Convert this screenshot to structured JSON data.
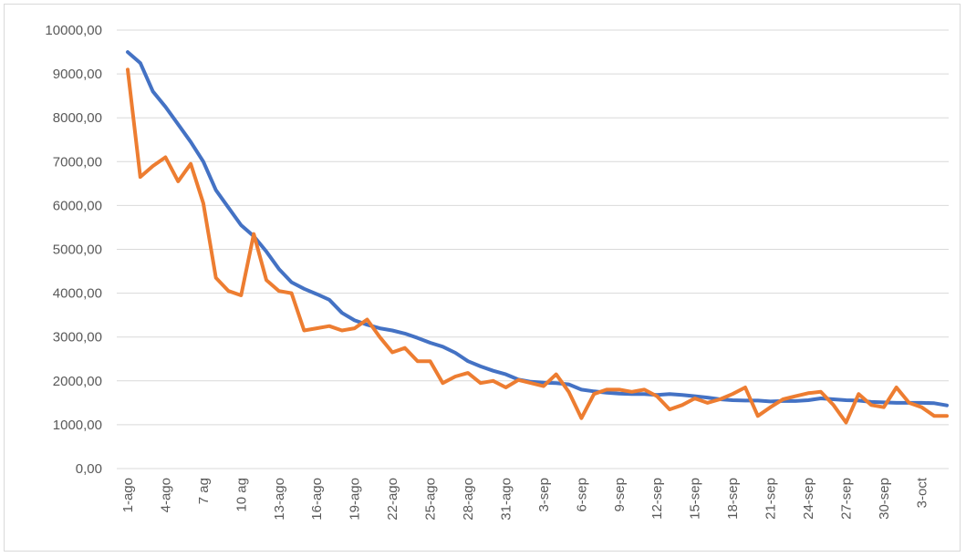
{
  "chart_data": {
    "type": "line",
    "title": "",
    "xlabel": "",
    "ylabel": "",
    "ylim": [
      0,
      10000
    ],
    "grid": true,
    "legend": "none",
    "y_ticks": [
      "0,00",
      "1000,00",
      "2000,00",
      "3000,00",
      "4000,00",
      "5000,00",
      "6000,00",
      "7000,00",
      "8000,00",
      "9000,00",
      "10000,00"
    ],
    "x_tick_labels": [
      "1-ago",
      "4-ago",
      "7 ag",
      "10 ag",
      "13-ago",
      "16-ago",
      "19-ago",
      "22-ago",
      "25-ago",
      "28-ago",
      "31-ago",
      "3-sep",
      "6-sep",
      "9-sep",
      "12-sep",
      "15-sep",
      "18-sep",
      "21-sep",
      "24-sep",
      "27-sep",
      "30-sep",
      "3-oct"
    ],
    "x": [
      "1-ago",
      "2-ago",
      "3-ago",
      "4-ago",
      "5-ago",
      "6-ago",
      "7-ago",
      "8-ago",
      "9-ago",
      "10-ago",
      "11-ago",
      "12-ago",
      "13-ago",
      "14-ago",
      "15-ago",
      "16-ago",
      "17-ago",
      "18-ago",
      "19-ago",
      "20-ago",
      "21-ago",
      "22-ago",
      "23-ago",
      "24-ago",
      "25-ago",
      "26-ago",
      "27-ago",
      "28-ago",
      "29-ago",
      "30-ago",
      "31-ago",
      "1-sep",
      "2-sep",
      "3-sep",
      "4-sep",
      "5-sep",
      "6-sep",
      "7-sep",
      "8-sep",
      "9-sep",
      "10-sep",
      "11-sep",
      "12-sep",
      "13-sep",
      "14-sep",
      "15-sep",
      "16-sep",
      "17-sep",
      "18-sep",
      "19-sep",
      "20-sep",
      "21-sep",
      "22-sep",
      "23-sep",
      "24-sep",
      "25-sep",
      "26-sep",
      "27-sep",
      "28-sep",
      "29-sep",
      "30-sep",
      "1-oct",
      "2-oct",
      "3-oct",
      "4-oct",
      "5-oct"
    ],
    "series": [
      {
        "color": "#4472c4",
        "values": [
          9500,
          9250,
          8600,
          8250,
          7850,
          7450,
          7000,
          6350,
          5950,
          5550,
          5300,
          4950,
          4550,
          4250,
          4100,
          3980,
          3850,
          3550,
          3380,
          3280,
          3200,
          3150,
          3080,
          2980,
          2870,
          2780,
          2640,
          2450,
          2330,
          2230,
          2150,
          2030,
          1980,
          1960,
          1950,
          1920,
          1800,
          1760,
          1730,
          1710,
          1700,
          1700,
          1680,
          1700,
          1680,
          1650,
          1620,
          1580,
          1560,
          1550,
          1550,
          1530,
          1540,
          1540,
          1560,
          1600,
          1580,
          1560,
          1550,
          1520,
          1510,
          1500,
          1500,
          1500,
          1490,
          1440
        ]
      },
      {
        "color": "#ed7d31",
        "values": [
          9100,
          6650,
          6900,
          7100,
          6550,
          6950,
          6050,
          4350,
          4050,
          3950,
          5350,
          4300,
          4050,
          4000,
          3150,
          3200,
          3250,
          3150,
          3200,
          3400,
          3000,
          2650,
          2750,
          2450,
          2450,
          1950,
          2100,
          2180,
          1950,
          2000,
          1850,
          2020,
          1950,
          1880,
          2150,
          1750,
          1150,
          1700,
          1800,
          1800,
          1750,
          1800,
          1650,
          1350,
          1450,
          1600,
          1500,
          1580,
          1700,
          1850,
          1200,
          1400,
          1580,
          1650,
          1720,
          1750,
          1450,
          1050,
          1700,
          1450,
          1400,
          1850,
          1500,
          1400,
          1200,
          1200
        ]
      }
    ]
  }
}
